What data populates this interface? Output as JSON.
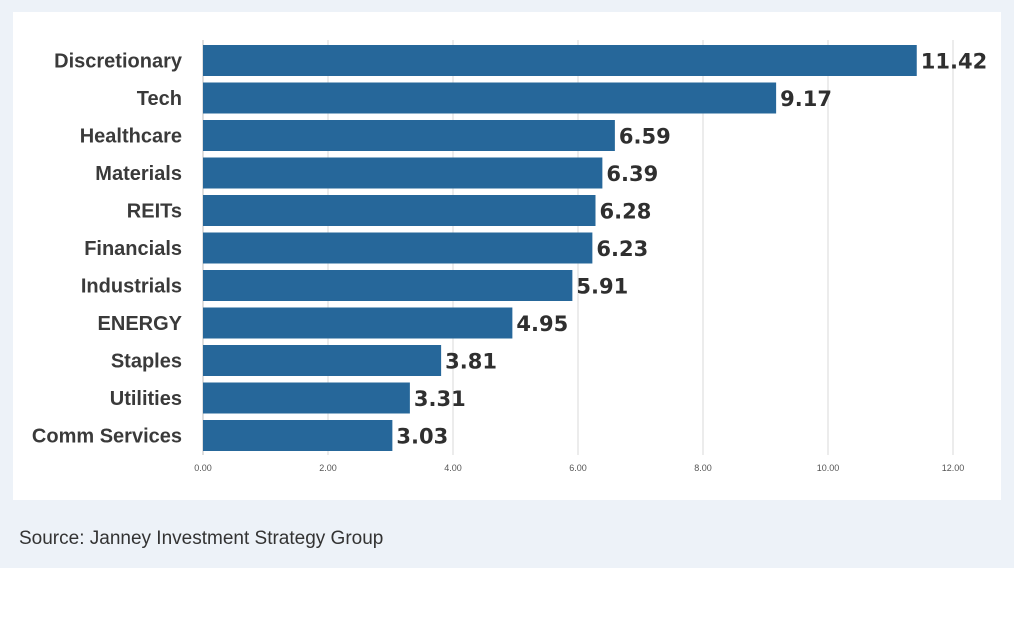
{
  "chart_data": {
    "type": "bar",
    "orientation": "horizontal",
    "categories": [
      "Discretionary",
      "Tech",
      "Healthcare",
      "Materials",
      "REITs",
      "Financials",
      "Industrials",
      "ENERGY",
      "Staples",
      "Utilities",
      "Comm Services"
    ],
    "values": [
      11.42,
      9.17,
      6.59,
      6.39,
      6.28,
      6.23,
      5.91,
      4.95,
      3.81,
      3.31,
      3.03
    ],
    "value_labels": [
      "11.42",
      "9.17",
      "6.59",
      "6.39",
      "6.28",
      "6.23",
      "5.91",
      "4.95",
      "3.81",
      "3.31",
      "3.03"
    ],
    "x_ticks": [
      "0.00",
      "2.00",
      "4.00",
      "6.00",
      "8.00",
      "10.00",
      "12.00"
    ],
    "xlim": [
      0,
      12
    ],
    "grid": true,
    "bar_color": "#26679a",
    "grid_color": "#d9d9d9"
  },
  "footer": {
    "source": "Source: Janney Investment Strategy Group"
  }
}
